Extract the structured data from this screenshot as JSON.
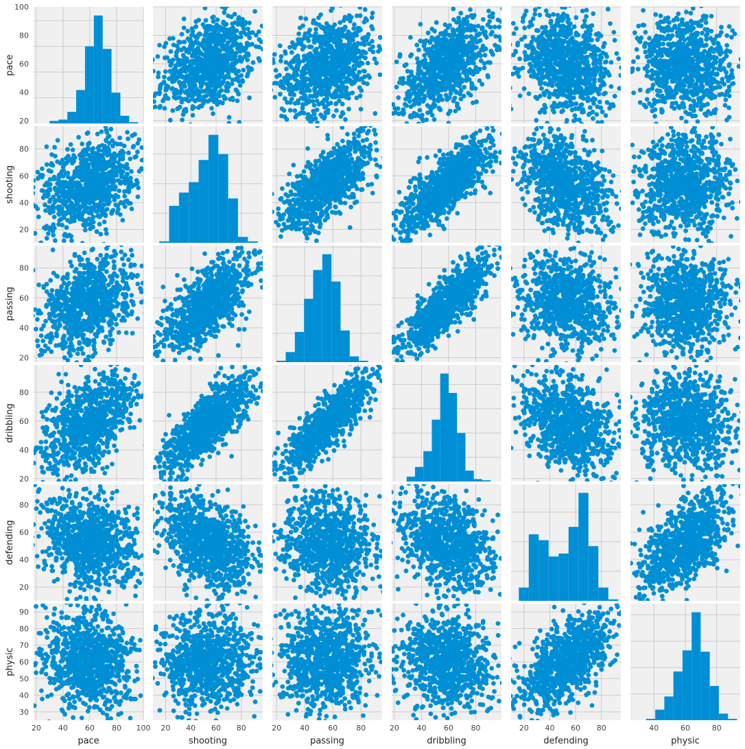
{
  "chart_data": {
    "type": "scatter",
    "kind": "pair-plot",
    "style": "fivethirtyeight",
    "color": "#008fd5",
    "panel_background": "#f0f0f0",
    "grid_color": "#cbcbcb",
    "grid": true,
    "variables": [
      "pace",
      "shooting",
      "passing",
      "dribbling",
      "defending",
      "physic"
    ],
    "ranges": {
      "pace": [
        18,
        100
      ],
      "shooting": [
        10,
        97
      ],
      "passing": [
        17,
        95
      ],
      "dribbling": [
        18,
        99
      ],
      "defending": [
        10,
        95
      ],
      "physic": [
        25,
        95
      ]
    },
    "x_ticks": {
      "pace": [
        20,
        40,
        60,
        80,
        100
      ],
      "shooting": [
        20,
        40,
        60,
        80
      ],
      "passing": [
        20,
        40,
        60,
        80
      ],
      "dribbling": [
        20,
        40,
        60,
        80
      ],
      "defending": [
        20,
        40,
        60,
        80
      ],
      "physic": [
        40,
        60,
        80
      ]
    },
    "y_ticks": {
      "pace": [
        20,
        40,
        60,
        80,
        100
      ],
      "shooting": [
        20,
        40,
        60,
        80
      ],
      "passing": [
        20,
        40,
        60,
        80
      ],
      "dribbling": [
        20,
        40,
        60,
        80
      ],
      "defending": [
        20,
        40,
        60,
        80
      ],
      "physic": [
        30,
        40,
        50,
        60,
        70,
        80,
        90
      ]
    },
    "histograms": {
      "pace": {
        "edges": [
          30,
          36.6,
          43.2,
          49.8,
          56.4,
          63,
          69.6,
          76.2,
          82.8,
          89.4,
          96
        ],
        "counts": [
          2,
          3,
          9,
          26,
          60,
          84,
          58,
          24,
          6,
          1
        ]
      },
      "shooting": {
        "edges": [
          15,
          22.8,
          30.6,
          38.4,
          46.2,
          54,
          61.8,
          69.6,
          77.4,
          85.2,
          93
        ],
        "counts": [
          1,
          25,
          34,
          41,
          56,
          73,
          60,
          30,
          4,
          1
        ]
      },
      "passing": {
        "edges": [
          20,
          26.5,
          33,
          39.5,
          46,
          52.5,
          59,
          65.5,
          72,
          78.5,
          85
        ],
        "counts": [
          1,
          7,
          21,
          44,
          64,
          75,
          56,
          22,
          4,
          1
        ]
      },
      "dribbling": {
        "edges": [
          29,
          35.2,
          41.4,
          47.6,
          53.8,
          60,
          66.2,
          72.4,
          78.6,
          84.8,
          91
        ],
        "counts": [
          4,
          12,
          25,
          51,
          89,
          73,
          40,
          9,
          2,
          1
        ]
      },
      "defending": {
        "edges": [
          16,
          23.7,
          31.4,
          39.1,
          46.8,
          54.5,
          62.2,
          69.9,
          77.6,
          85.3,
          93
        ],
        "counts": [
          9,
          45,
          41,
          30,
          32,
          50,
          73,
          37,
          9,
          1
        ]
      },
      "physic": {
        "edges": [
          35,
          40.8,
          46.6,
          52.4,
          58.2,
          64,
          69.8,
          75.6,
          81.4,
          87.2,
          93
        ],
        "counts": [
          1,
          8,
          18,
          37,
          53,
          82,
          52,
          26,
          5,
          1
        ]
      }
    },
    "pair_scatter_shapes": {
      "description_free": true,
      "pace|shooting": {
        "corr": 0.35,
        "fill": 0.86
      },
      "pace|passing": {
        "corr": 0.35,
        "fill": 0.86
      },
      "pace|dribbling": {
        "corr": 0.55,
        "fill": 0.78
      },
      "pace|defending": {
        "corr": -0.25,
        "fill": 0.9
      },
      "pace|physic": {
        "corr": -0.1,
        "fill": 0.9
      },
      "shooting|passing": {
        "corr": 0.7,
        "fill": 0.75
      },
      "shooting|dribbling": {
        "corr": 0.8,
        "fill": 0.7
      },
      "shooting|defending": {
        "corr": -0.4,
        "fill": 0.85
      },
      "shooting|physic": {
        "corr": 0.05,
        "fill": 0.9
      },
      "passing|dribbling": {
        "corr": 0.85,
        "fill": 0.65
      },
      "passing|defending": {
        "corr": -0.1,
        "fill": 0.85
      },
      "passing|physic": {
        "corr": 0.05,
        "fill": 0.88
      },
      "dribbling|defending": {
        "corr": -0.3,
        "fill": 0.85
      },
      "dribbling|physic": {
        "corr": -0.05,
        "fill": 0.88
      },
      "defending|physic": {
        "corr": 0.6,
        "fill": 0.78
      }
    }
  }
}
